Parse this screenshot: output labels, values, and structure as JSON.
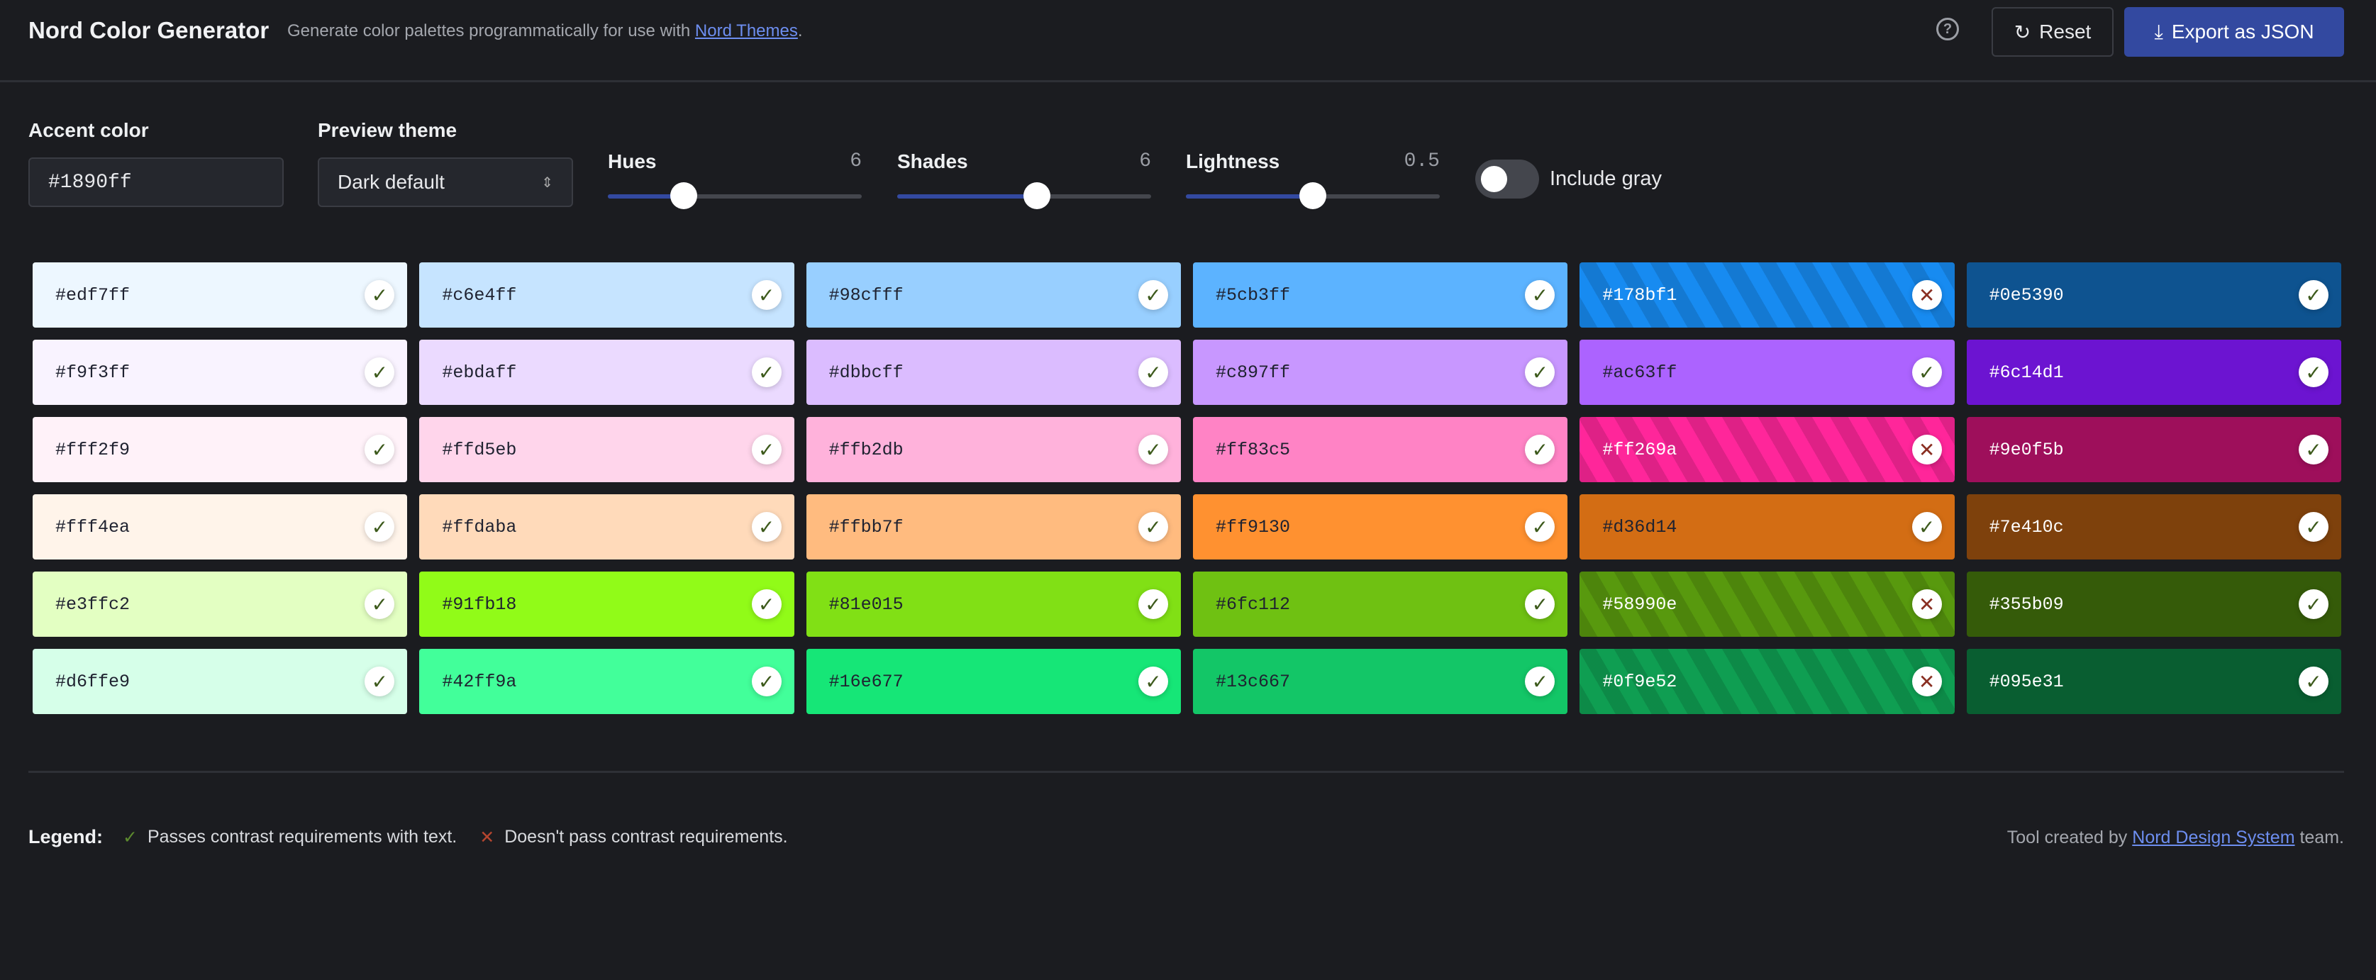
{
  "header": {
    "title": "Nord Color Generator",
    "subtitle_prefix": "Generate color palettes programmatically for use with ",
    "subtitle_link": "Nord Themes",
    "subtitle_suffix": ".",
    "help_icon": "question-circle-icon",
    "reset_label": "Reset",
    "reset_icon": "refresh-icon",
    "export_label": "Export as JSON",
    "export_icon": "download-icon"
  },
  "controls": {
    "accent": {
      "label": "Accent color",
      "value": "#1890ff"
    },
    "theme": {
      "label": "Preview theme",
      "value": "Dark default"
    },
    "hues": {
      "label": "Hues",
      "value": "6",
      "fraction": 0.3
    },
    "shades": {
      "label": "Shades",
      "value": "6",
      "fraction": 0.55
    },
    "lightness": {
      "label": "Lightness",
      "value": "0.5",
      "fraction": 0.5
    },
    "include_gray": {
      "label": "Include gray",
      "on": false
    }
  },
  "palette": [
    [
      {
        "hex": "#edf7ff",
        "pass": true,
        "light": false
      },
      {
        "hex": "#c6e4ff",
        "pass": true,
        "light": false
      },
      {
        "hex": "#98cfff",
        "pass": true,
        "light": false
      },
      {
        "hex": "#5cb3ff",
        "pass": true,
        "light": false
      },
      {
        "hex": "#178bf1",
        "pass": false,
        "light": true
      },
      {
        "hex": "#0e5390",
        "pass": true,
        "light": true
      }
    ],
    [
      {
        "hex": "#f9f3ff",
        "pass": true,
        "light": false
      },
      {
        "hex": "#ebdaff",
        "pass": true,
        "light": false
      },
      {
        "hex": "#dbbcff",
        "pass": true,
        "light": false
      },
      {
        "hex": "#c897ff",
        "pass": true,
        "light": false
      },
      {
        "hex": "#ac63ff",
        "pass": true,
        "light": false
      },
      {
        "hex": "#6c14d1",
        "pass": true,
        "light": true
      }
    ],
    [
      {
        "hex": "#fff2f9",
        "pass": true,
        "light": false
      },
      {
        "hex": "#ffd5eb",
        "pass": true,
        "light": false
      },
      {
        "hex": "#ffb2db",
        "pass": true,
        "light": false
      },
      {
        "hex": "#ff83c5",
        "pass": true,
        "light": false
      },
      {
        "hex": "#ff269a",
        "pass": false,
        "light": true
      },
      {
        "hex": "#9e0f5b",
        "pass": true,
        "light": true
      }
    ],
    [
      {
        "hex": "#fff4ea",
        "pass": true,
        "light": false
      },
      {
        "hex": "#ffdaba",
        "pass": true,
        "light": false
      },
      {
        "hex": "#ffbb7f",
        "pass": true,
        "light": false
      },
      {
        "hex": "#ff9130",
        "pass": true,
        "light": false
      },
      {
        "hex": "#d36d14",
        "pass": true,
        "light": false
      },
      {
        "hex": "#7e410c",
        "pass": true,
        "light": true
      }
    ],
    [
      {
        "hex": "#e3ffc2",
        "pass": true,
        "light": false
      },
      {
        "hex": "#91fb18",
        "pass": true,
        "light": false
      },
      {
        "hex": "#81e015",
        "pass": true,
        "light": false
      },
      {
        "hex": "#6fc112",
        "pass": true,
        "light": false
      },
      {
        "hex": "#58990e",
        "pass": false,
        "light": true
      },
      {
        "hex": "#355b09",
        "pass": true,
        "light": true
      }
    ],
    [
      {
        "hex": "#d6ffe9",
        "pass": true,
        "light": false
      },
      {
        "hex": "#42ff9a",
        "pass": true,
        "light": false
      },
      {
        "hex": "#16e677",
        "pass": true,
        "light": false
      },
      {
        "hex": "#13c667",
        "pass": true,
        "light": false
      },
      {
        "hex": "#0f9e52",
        "pass": false,
        "light": true
      },
      {
        "hex": "#095e31",
        "pass": true,
        "light": true
      }
    ]
  ],
  "footer": {
    "legend_label": "Legend:",
    "pass_text": "Passes contrast requirements with text.",
    "fail_text": "Doesn't pass contrast requirements.",
    "credit_prefix": "Tool created by ",
    "credit_link": "Nord Design System",
    "credit_suffix": " team."
  },
  "colors": {
    "accent": "#3349a0",
    "link": "#6d8ef0",
    "pass": "#5c8a2e",
    "fail": "#b5452f",
    "background": "#1b1c20"
  }
}
